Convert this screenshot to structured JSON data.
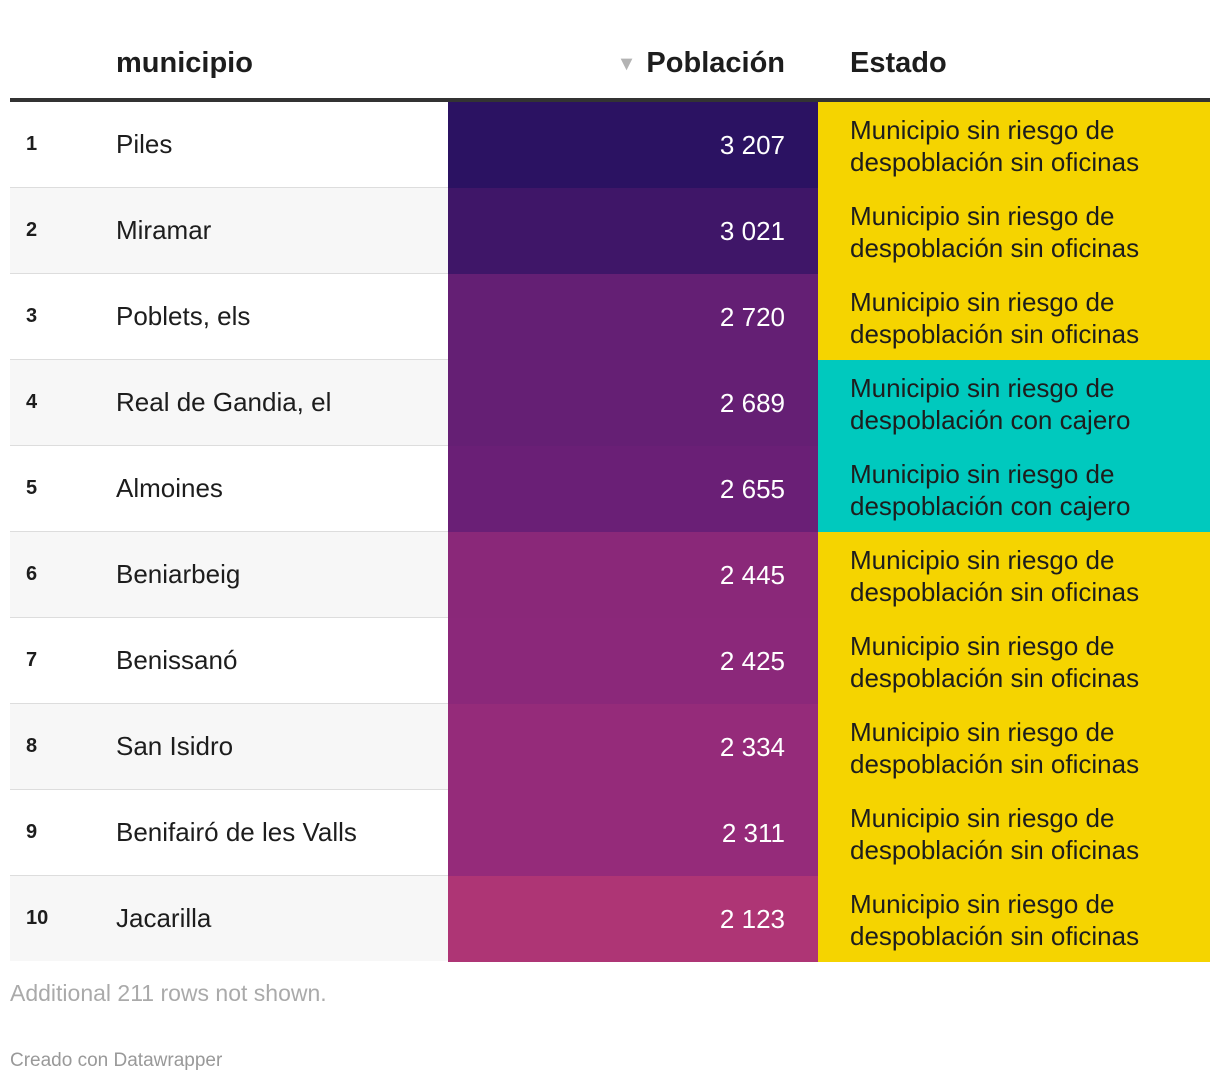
{
  "header": {
    "col_municipio": "municipio",
    "col_poblacion": "Población",
    "col_estado": "Estado",
    "sort_icon": "▼"
  },
  "rows": [
    {
      "rank": "1",
      "municipio": "Piles",
      "poblacion_label": "3 207",
      "estado": "Municipio sin riesgo de despoblación sin oficinas"
    },
    {
      "rank": "2",
      "municipio": "Miramar",
      "poblacion_label": "3 021",
      "estado": "Municipio sin riesgo de despoblación sin oficinas"
    },
    {
      "rank": "3",
      "municipio": "Poblets, els",
      "poblacion_label": "2 720",
      "estado": "Municipio sin riesgo de despoblación sin oficinas"
    },
    {
      "rank": "4",
      "municipio": "Real de Gandia, el",
      "poblacion_label": "2 689",
      "estado": "Municipio sin riesgo de despoblación con cajero"
    },
    {
      "rank": "5",
      "municipio": "Almoines",
      "poblacion_label": "2 655",
      "estado": "Municipio sin riesgo de despoblación con cajero"
    },
    {
      "rank": "6",
      "municipio": "Beniarbeig",
      "poblacion_label": "2 445",
      "estado": "Municipio sin riesgo de despoblación sin oficinas"
    },
    {
      "rank": "7",
      "municipio": "Benissanó",
      "poblacion_label": "2 425",
      "estado": "Municipio sin riesgo de despoblación sin oficinas"
    },
    {
      "rank": "8",
      "municipio": "San Isidro",
      "poblacion_label": "2 334",
      "estado": "Municipio sin riesgo de despoblación sin oficinas"
    },
    {
      "rank": "9",
      "municipio": "Benifairó de les Valls",
      "poblacion_label": "2 311",
      "estado": "Municipio sin riesgo de despoblación sin oficinas"
    },
    {
      "rank": "10",
      "municipio": "Jacarilla",
      "poblacion_label": "2 123",
      "estado": "Municipio sin riesgo de despoblación sin oficinas"
    }
  ],
  "colors": {
    "poblacion": [
      "#2b1262",
      "#3f1668",
      "#641f74",
      "#651f74",
      "#6a1f76",
      "#8a2879",
      "#8b287a",
      "#952b7a",
      "#952b7a",
      "#ae3575"
    ],
    "estado_sin_oficinas": "#f5d400",
    "estado_con_cajero": "#00c9be",
    "row_alt_bg": "#f7f7f7"
  },
  "chart_data": {
    "type": "table",
    "columns": [
      "municipio",
      "Población",
      "Estado"
    ],
    "sorted_by": "Población",
    "categories": [
      "Piles",
      "Miramar",
      "Poblets, els",
      "Real de Gandia, el",
      "Almoines",
      "Beniarbeig",
      "Benissanó",
      "San Isidro",
      "Benifairó de les Valls",
      "Jacarilla"
    ],
    "values": [
      3207,
      3021,
      2720,
      2689,
      2655,
      2445,
      2425,
      2334,
      2311,
      2123
    ],
    "estado": [
      "sin oficinas",
      "sin oficinas",
      "sin oficinas",
      "con cajero",
      "con cajero",
      "sin oficinas",
      "sin oficinas",
      "sin oficinas",
      "sin oficinas",
      "sin oficinas"
    ]
  },
  "footer": {
    "rows_note": "Additional 211 rows not shown.",
    "credit": "Creado con Datawrapper"
  }
}
